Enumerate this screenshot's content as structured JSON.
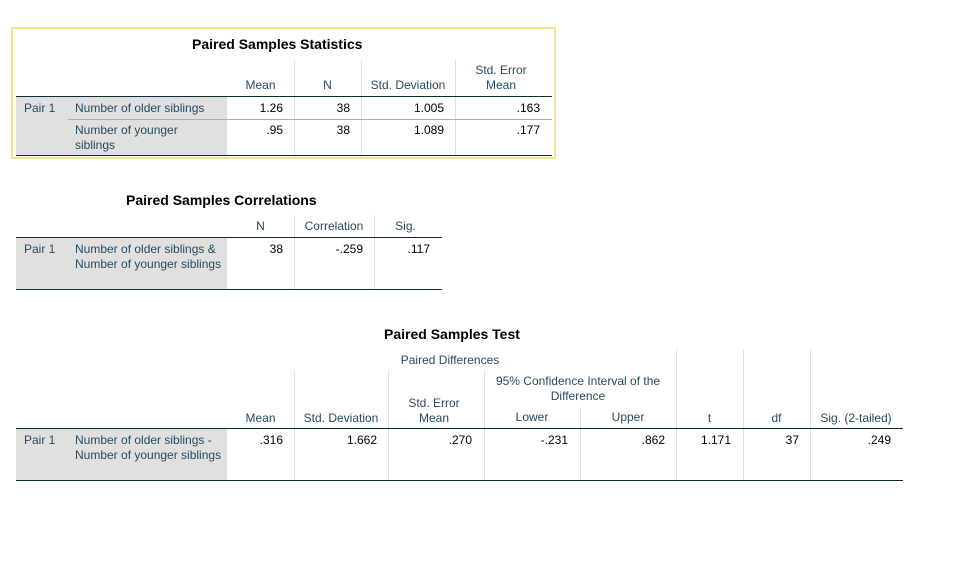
{
  "stats": {
    "title": "Paired Samples Statistics",
    "headers": {
      "mean": "Mean",
      "n": "N",
      "sd": "Std. Deviation",
      "se": "Std. Error Mean"
    },
    "pair_label": "Pair 1",
    "rows": [
      {
        "label": "Number of older siblings",
        "mean": "1.26",
        "n": "38",
        "sd": "1.005",
        "se": ".163"
      },
      {
        "label": "Number of younger siblings",
        "mean": ".95",
        "n": "38",
        "sd": "1.089",
        "se": ".177"
      }
    ]
  },
  "corr": {
    "title": "Paired Samples Correlations",
    "headers": {
      "n": "N",
      "correlation": "Correlation",
      "sig": "Sig."
    },
    "pair_label": "Pair 1",
    "row": {
      "label": "Number of older siblings & Number of younger siblings",
      "n": "38",
      "correlation": "-.259",
      "sig": ".117"
    }
  },
  "test": {
    "title": "Paired Samples Test",
    "headers": {
      "paired_diff": "Paired Differences",
      "ci": "95% Confidence Interval of the Difference",
      "mean": "Mean",
      "sd": "Std. Deviation",
      "se": "Std. Error Mean",
      "lower": "Lower",
      "upper": "Upper",
      "t": "t",
      "df": "df",
      "sig": "Sig. (2-tailed)"
    },
    "pair_label": "Pair 1",
    "row": {
      "label": "Number of older siblings - Number of younger siblings",
      "mean": ".316",
      "sd": "1.662",
      "se": ".270",
      "lower": "-.231",
      "upper": ".862",
      "t": "1.171",
      "df": "37",
      "sig": ".249"
    }
  },
  "colors": {
    "selection_frame": "#f2e48a",
    "row_shade": "#e0e0e0",
    "header_text": "#264a60"
  }
}
